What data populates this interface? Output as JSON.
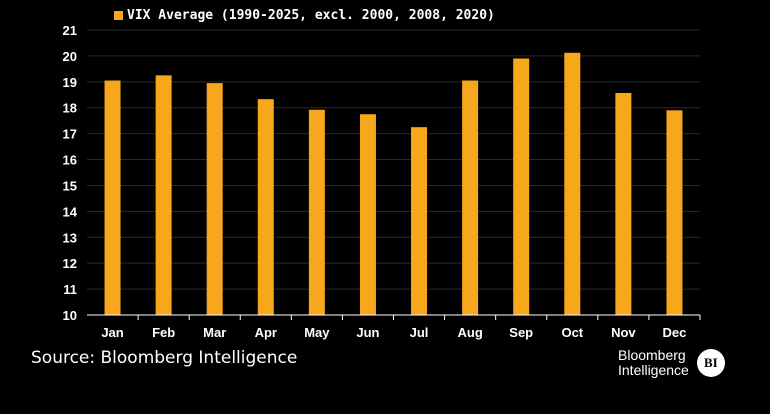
{
  "chart_data": {
    "type": "bar",
    "categories": [
      "Jan",
      "Feb",
      "Mar",
      "Apr",
      "May",
      "Jun",
      "Jul",
      "Aug",
      "Sep",
      "Oct",
      "Nov",
      "Dec"
    ],
    "series": [
      {
        "name": "VIX Average (1990-2025, excl. 2000, 2008, 2020)",
        "values": [
          19.05,
          19.25,
          18.95,
          18.33,
          17.92,
          17.75,
          17.25,
          19.05,
          19.9,
          20.12,
          18.57,
          17.9
        ]
      }
    ],
    "ylim": [
      10,
      21
    ],
    "yticks": [
      10,
      11,
      12,
      13,
      14,
      15,
      16,
      17,
      18,
      19,
      20,
      21
    ],
    "grid": true,
    "legend_position": "top-left",
    "bar_color": "#f7a71c"
  },
  "source": "Source: Bloomberg Intelligence",
  "brand": {
    "line1": "Bloomberg",
    "line2": "Intelligence",
    "badge": "BI"
  }
}
